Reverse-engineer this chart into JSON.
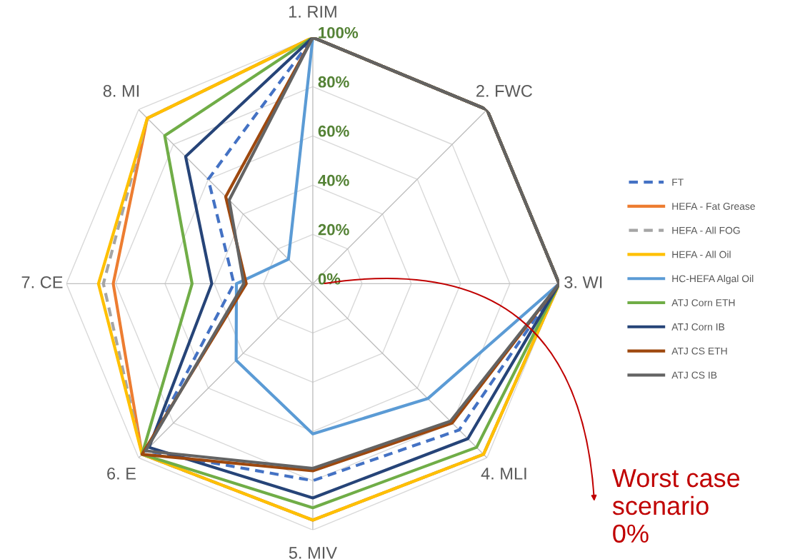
{
  "chart_data": {
    "type": "radar",
    "categories": [
      "1. RIM",
      "2. FWC",
      "3. WI",
      "4. MLI",
      "5. MIV",
      "6. E",
      "7. CE",
      "8. MI"
    ],
    "ylim": [
      0,
      100
    ],
    "yticks": [
      {
        "value": 0,
        "label": "0%"
      },
      {
        "value": 20,
        "label": "20%"
      },
      {
        "value": 40,
        "label": "40%"
      },
      {
        "value": 60,
        "label": "60%"
      },
      {
        "value": 80,
        "label": "80%"
      },
      {
        "value": 100,
        "label": "100%"
      }
    ],
    "grid": true,
    "legend": "right",
    "marker": "none",
    "series": [
      {
        "name": "FT",
        "color": "#4472c4",
        "line_style": "dashed",
        "values": [
          100,
          100,
          100,
          84,
          80,
          96,
          32,
          60
        ]
      },
      {
        "name": "HEFA - Fat Grease",
        "color": "#ed7d31",
        "line_style": "solid",
        "values": [
          100,
          100,
          100,
          98,
          96,
          98,
          81,
          95
        ]
      },
      {
        "name": "HEFA - All FOG",
        "color": "#a5a5a5",
        "line_style": "dashed",
        "values": [
          100,
          100,
          100,
          98,
          96,
          98,
          85,
          95
        ]
      },
      {
        "name": "HEFA - All Oil",
        "color": "#ffc000",
        "line_style": "solid",
        "values": [
          100,
          100,
          100,
          98,
          96,
          98,
          87,
          95
        ]
      },
      {
        "name": "HC-HEFA Algal Oil",
        "color": "#5b9bd5",
        "line_style": "solid",
        "values": [
          100,
          100,
          100,
          66,
          61,
          44,
          31,
          14
        ]
      },
      {
        "name": "ATJ Corn ETH",
        "color": "#70ad47",
        "line_style": "solid",
        "values": [
          100,
          100,
          100,
          94,
          91,
          98,
          49,
          85
        ]
      },
      {
        "name": "ATJ Corn IB",
        "color": "#264478",
        "line_style": "solid",
        "values": [
          100,
          100,
          100,
          89,
          87,
          94,
          41,
          73
        ]
      },
      {
        "name": "ATJ CS ETH",
        "color": "#9e480e",
        "line_style": "solid",
        "values": [
          100,
          100,
          100,
          80,
          76,
          98,
          27,
          50
        ]
      },
      {
        "name": "ATJ CS IB",
        "color": "#636363",
        "line_style": "solid",
        "values": [
          100,
          100,
          100,
          79,
          75,
          96,
          28,
          48
        ]
      }
    ],
    "annotations": [
      "Worst case scenario 0%"
    ]
  }
}
